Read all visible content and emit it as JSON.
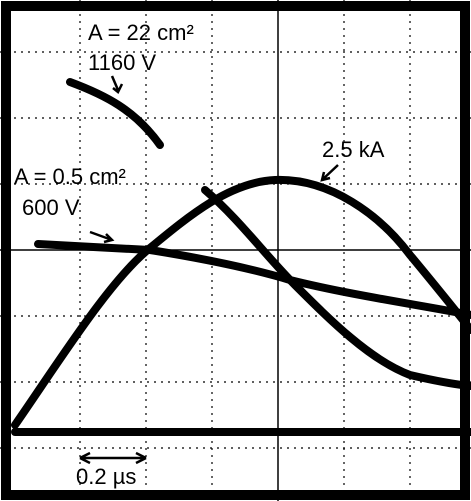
{
  "annotations": {
    "large_area": "A = 22 cm²",
    "large_voltage": "1160 V",
    "small_area": "A = 0.5 cm²",
    "small_voltage": "600 V",
    "current": "2.5 kA",
    "time_scale": "0.2 µs"
  }
}
